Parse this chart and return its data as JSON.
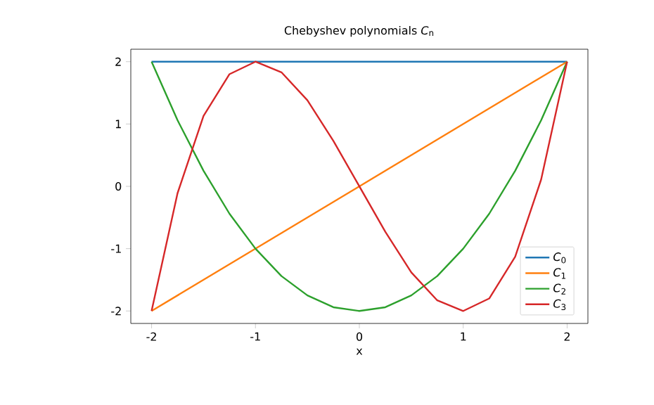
{
  "chart_data": {
    "type": "line",
    "title": "Chebyshev polynomials *C*$_{n}$",
    "xlabel": "x",
    "xlim": [
      -2.2,
      2.2
    ],
    "ylim": [
      -2.2,
      2.2
    ],
    "xticks": [
      -2,
      -1,
      0,
      1,
      2
    ],
    "yticks": [
      -2,
      -1,
      0,
      1,
      2
    ],
    "grid": false,
    "legend": "bottom right",
    "marker": "none",
    "line_style": "solid",
    "series": [
      {
        "name": "*C*$_{0}$",
        "color": "#1f77b4",
        "x": [
          -2,
          2
        ],
        "values": [
          2,
          2
        ]
      },
      {
        "name": "*C*$_{1}$",
        "color": "#ff7f0e",
        "x": [
          -2,
          2
        ],
        "values": [
          -2,
          2
        ]
      },
      {
        "name": "*C*$_{2}$",
        "color": "#2ca02c",
        "x": [
          -2,
          -1.75,
          -1.5,
          -1.25,
          -1,
          -0.75,
          -0.5,
          -0.25,
          0,
          0.25,
          0.5,
          0.75,
          1,
          1.25,
          1.5,
          1.75,
          2
        ],
        "values": [
          2,
          1.06,
          0.25,
          -0.44,
          -1,
          -1.44,
          -1.75,
          -1.94,
          -2,
          -1.94,
          -1.75,
          -1.44,
          -1,
          -0.44,
          0.25,
          1.06,
          2
        ]
      },
      {
        "name": "*C*$_{3}$",
        "color": "#d62728",
        "x": [
          -2,
          -1.75,
          -1.5,
          -1.25,
          -1,
          -0.75,
          -0.5,
          -0.25,
          0,
          0.25,
          0.5,
          0.75,
          1,
          1.25,
          1.5,
          1.75,
          2
        ],
        "values": [
          -2,
          -0.11,
          1.13,
          1.8,
          2,
          1.83,
          1.38,
          0.73,
          0,
          -0.73,
          -1.38,
          -1.83,
          -2,
          -1.8,
          -1.13,
          0.11,
          2
        ]
      }
    ]
  }
}
